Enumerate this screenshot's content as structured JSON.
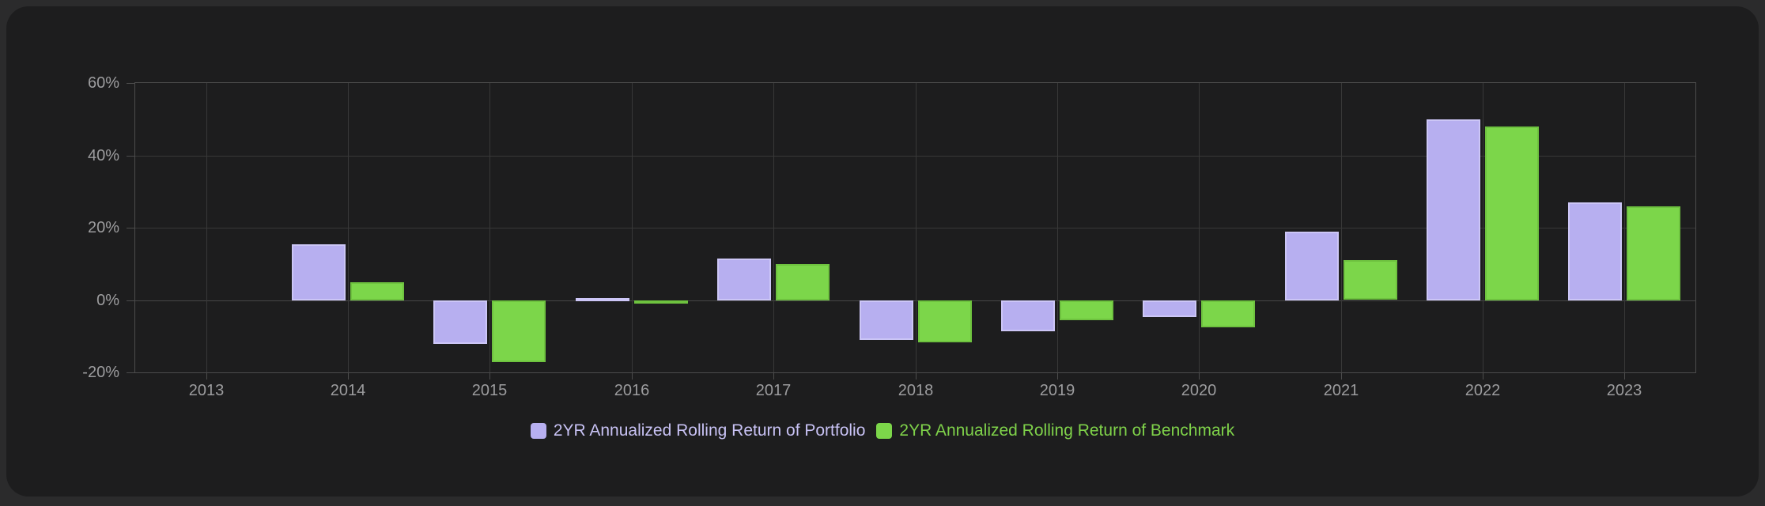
{
  "page": {
    "outer_background": "#2b2b2c",
    "card_background": "#1d1d1e",
    "gridline_color": "#383838",
    "axis_border_color": "#4c4c4c",
    "tick_label_color": "#9c9c9e"
  },
  "chart_data": {
    "type": "bar",
    "title": "",
    "categories": [
      "2013",
      "2014",
      "2015",
      "2016",
      "2017",
      "2018",
      "2019",
      "2020",
      "2021",
      "2022",
      "2023"
    ],
    "series": [
      {
        "name": "2YR Annualized Rolling Return of Portfolio",
        "color": "#b7aff0",
        "border_color": "#ccc6f6",
        "label_color": "#c8c2f4",
        "values": [
          null,
          15.5,
          -12,
          0.5,
          11.5,
          -11,
          -8.5,
          -4.5,
          19,
          50,
          27
        ]
      },
      {
        "name": "2YR Annualized Rolling Return of Benchmark",
        "color": "#7cd64a",
        "border_color": "#6ec23f",
        "label_color": "#7fd24a",
        "values": [
          null,
          5,
          -17,
          -0.5,
          10,
          -11.5,
          -5.5,
          -7.5,
          11,
          48,
          26
        ]
      }
    ],
    "y_axis": {
      "unit": "%",
      "ylim": [
        -20,
        60
      ],
      "ticks": [
        {
          "label": "60%",
          "value": 60
        },
        {
          "label": "40%",
          "value": 40
        },
        {
          "label": "20%",
          "value": 20
        },
        {
          "label": "0%",
          "value": 0
        },
        {
          "label": "-20%",
          "value": -20
        }
      ]
    },
    "grid": true,
    "legend_position": "bottom"
  }
}
